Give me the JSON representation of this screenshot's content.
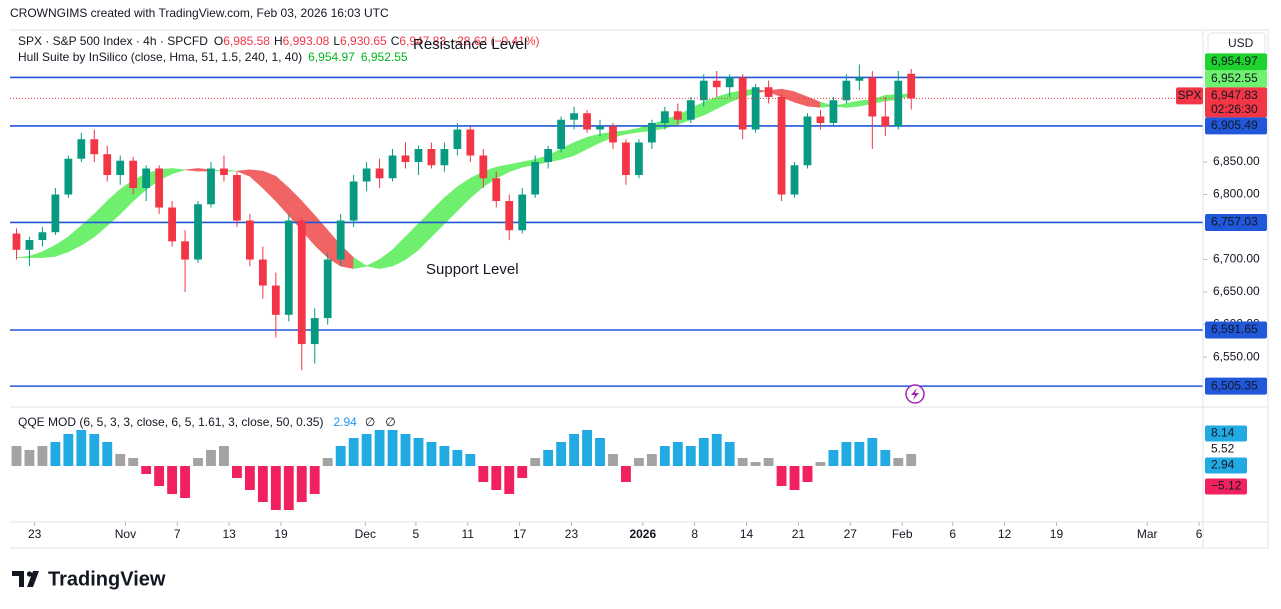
{
  "header": {
    "credit": "CROWNGIMS created with TradingView.com, Feb 03, 2026 16:03 UTC",
    "symbol": "SPX · S&P 500 Index · 4h · SPCFD",
    "quote": [
      "O",
      "6,985.58",
      "H",
      "6,993.08",
      "L",
      "6,930.65",
      "C",
      "6,947.83",
      "−28.62 (−0.41%)"
    ],
    "indicator": "Hull Suite by InSilico (close, Hma, 51, 1.5, 240, 1, 40)",
    "indicator_values": [
      "6,954.97",
      "6,952.55"
    ],
    "currency": "USD",
    "logo": "TradingView"
  },
  "chart_data": {
    "type": "candlestick",
    "up_color": "#089981",
    "down_color": "#f23645",
    "ylim": [
      6484,
      7053
    ],
    "xlim": [
      -0.5,
      91.5
    ],
    "yticks": [
      {
        "value": 6850,
        "label": "6,850.00"
      },
      {
        "value": 6800,
        "label": "6,800.00"
      },
      {
        "value": 6700,
        "label": "6,700.00"
      },
      {
        "value": 6650,
        "label": "6,650.00"
      },
      {
        "value": 6600,
        "label": "6,600.00"
      },
      {
        "value": 6550,
        "label": "6,550.00"
      }
    ],
    "xticks": [
      {
        "value": 1.4,
        "label": "23"
      },
      {
        "value": 8.4,
        "label": "Nov"
      },
      {
        "value": 12.4,
        "label": "7"
      },
      {
        "value": 16.4,
        "label": "13"
      },
      {
        "value": 20.4,
        "label": "19"
      },
      {
        "value": 26.9,
        "label": "Dec"
      },
      {
        "value": 30.8,
        "label": "5"
      },
      {
        "value": 34.8,
        "label": "11"
      },
      {
        "value": 38.8,
        "label": "17"
      },
      {
        "value": 42.8,
        "label": "23"
      },
      {
        "value": 48.3,
        "label": "2026"
      },
      {
        "value": 52.3,
        "label": "8"
      },
      {
        "value": 56.3,
        "label": "14"
      },
      {
        "value": 60.3,
        "label": "21"
      },
      {
        "value": 64.3,
        "label": "27"
      },
      {
        "value": 68.3,
        "label": "Feb"
      },
      {
        "value": 72.2,
        "label": "6"
      },
      {
        "value": 76.2,
        "label": "12"
      },
      {
        "value": 80.2,
        "label": "19"
      },
      {
        "value": 87.2,
        "label": "Mar"
      },
      {
        "value": 91.2,
        "label": "6"
      }
    ],
    "candles": [
      [
        6740,
        6748,
        6700,
        6715
      ],
      [
        6715,
        6735,
        6690,
        6730
      ],
      [
        6730,
        6750,
        6720,
        6742
      ],
      [
        6742,
        6810,
        6738,
        6800
      ],
      [
        6800,
        6860,
        6795,
        6855
      ],
      [
        6855,
        6895,
        6850,
        6885
      ],
      [
        6885,
        6900,
        6850,
        6862
      ],
      [
        6862,
        6875,
        6820,
        6830
      ],
      [
        6830,
        6860,
        6815,
        6852
      ],
      [
        6852,
        6858,
        6800,
        6810
      ],
      [
        6810,
        6845,
        6790,
        6840
      ],
      [
        6840,
        6845,
        6770,
        6780
      ],
      [
        6780,
        6790,
        6720,
        6728
      ],
      [
        6728,
        6745,
        6650,
        6700
      ],
      [
        6700,
        6790,
        6695,
        6785
      ],
      [
        6785,
        6850,
        6780,
        6840
      ],
      [
        6840,
        6860,
        6820,
        6830
      ],
      [
        6830,
        6835,
        6750,
        6760
      ],
      [
        6760,
        6770,
        6690,
        6700
      ],
      [
        6700,
        6720,
        6640,
        6660
      ],
      [
        6660,
        6680,
        6580,
        6615
      ],
      [
        6615,
        6770,
        6605,
        6760
      ],
      [
        6760,
        6765,
        6530,
        6570
      ],
      [
        6570,
        6625,
        6540,
        6610
      ],
      [
        6610,
        6710,
        6600,
        6700
      ],
      [
        6700,
        6770,
        6690,
        6760
      ],
      [
        6760,
        6830,
        6750,
        6820
      ],
      [
        6820,
        6850,
        6805,
        6840
      ],
      [
        6840,
        6855,
        6810,
        6825
      ],
      [
        6825,
        6870,
        6820,
        6860
      ],
      [
        6860,
        6880,
        6840,
        6850
      ],
      [
        6850,
        6875,
        6830,
        6870
      ],
      [
        6870,
        6880,
        6840,
        6845
      ],
      [
        6845,
        6880,
        6835,
        6870
      ],
      [
        6870,
        6910,
        6860,
        6900
      ],
      [
        6900,
        6905,
        6850,
        6860
      ],
      [
        6860,
        6870,
        6810,
        6825
      ],
      [
        6825,
        6835,
        6780,
        6790
      ],
      [
        6790,
        6800,
        6730,
        6745
      ],
      [
        6745,
        6810,
        6740,
        6800
      ],
      [
        6800,
        6860,
        6795,
        6850
      ],
      [
        6850,
        6875,
        6840,
        6870
      ],
      [
        6870,
        6920,
        6865,
        6915
      ],
      [
        6915,
        6935,
        6900,
        6925
      ],
      [
        6925,
        6930,
        6895,
        6900
      ],
      [
        6900,
        6915,
        6890,
        6905
      ],
      [
        6905,
        6910,
        6870,
        6880
      ],
      [
        6880,
        6885,
        6815,
        6830
      ],
      [
        6830,
        6885,
        6825,
        6880
      ],
      [
        6880,
        6915,
        6870,
        6910
      ],
      [
        6910,
        6935,
        6900,
        6928
      ],
      [
        6928,
        6940,
        6905,
        6915
      ],
      [
        6915,
        6950,
        6910,
        6945
      ],
      [
        6945,
        6985,
        6935,
        6975
      ],
      [
        6975,
        6990,
        6950,
        6965
      ],
      [
        6965,
        6985,
        6950,
        6980
      ],
      [
        6980,
        6985,
        6885,
        6900
      ],
      [
        6900,
        6970,
        6895,
        6965
      ],
      [
        6965,
        6975,
        6940,
        6950
      ],
      [
        6950,
        6955,
        6790,
        6800
      ],
      [
        6800,
        6850,
        6795,
        6845
      ],
      [
        6845,
        6925,
        6840,
        6920
      ],
      [
        6920,
        6930,
        6900,
        6910
      ],
      [
        6910,
        6950,
        6905,
        6945
      ],
      [
        6945,
        6985,
        6940,
        6975
      ],
      [
        6975,
        7000,
        6960,
        6980
      ],
      [
        6980,
        6990,
        6870,
        6920
      ],
      [
        6920,
        6950,
        6890,
        6905
      ],
      [
        6905,
        6990,
        6900,
        6975
      ],
      [
        6985.58,
        6993.08,
        6930.65,
        6947.83
      ]
    ],
    "hull": [
      6703,
      6705,
      6712,
      6722,
      6735,
      6752,
      6770,
      6790,
      6808,
      6822,
      6832,
      6838,
      6840,
      6838,
      6836,
      6836,
      6838,
      6836,
      6828,
      6810,
      6790,
      6768,
      6745,
      6722,
      6703,
      6690,
      6686,
      6690,
      6700,
      6715,
      6735,
      6755,
      6775,
      6795,
      6812,
      6825,
      6835,
      6842,
      6846,
      6850,
      6854,
      6860,
      6870,
      6880,
      6888,
      6893,
      6896,
      6898,
      6902,
      6908,
      6915,
      6922,
      6932,
      6942,
      6950,
      6956,
      6960,
      6962,
      6958,
      6950,
      6942,
      6936,
      6934,
      6936,
      6940,
      6944,
      6946,
      6952.55,
      6953.8,
      6954.97
    ],
    "hull_up_color": "#6ef06e",
    "hull_down_color": "#f06464",
    "levels": [
      6980,
      6905.49,
      6757.03,
      6591.65,
      6505.35
    ],
    "level_color": "#2157d9",
    "price_tags": [
      {
        "value": 6954.97,
        "label": "6,954.97",
        "color": "#1fd32f",
        "text_color": "#131722"
      },
      {
        "value": 6952.55,
        "label": "6,952.55",
        "color": "#6ff26f",
        "text_color": "#131722"
      },
      {
        "value": 6947.83,
        "label": "6,947.83",
        "sub": "02:26:30",
        "symbol": "SPX",
        "color": "#f23645",
        "text_color": "#ffffff"
      },
      {
        "value": 6905.49,
        "label": "6,905.49",
        "color": "#2157d9",
        "text_color": "#ffffff"
      },
      {
        "value": 6757.03,
        "label": "6,757.03",
        "color": "#2157d9",
        "text_color": "#ffffff"
      },
      {
        "value": 6591.65,
        "label": "6,591.65",
        "color": "#2157d9",
        "text_color": "#ffffff"
      },
      {
        "value": 6505.35,
        "label": "6,505.35",
        "color": "#2157d9",
        "text_color": "#ffffff"
      }
    ],
    "annotations": [
      "Resistance Level",
      "Support Level"
    ],
    "qqe": {
      "name": "QQE MOD (6, 5, 3, 3, close, 6, 5, 1.61, 3, close, 50, 0.35)",
      "header_value": "2.94",
      "header_marks": [
        "∅",
        "∅"
      ],
      "ylim": [
        -12,
        12
      ],
      "colors": {
        "up": "#22abe3",
        "down": "#f0215e",
        "neutral": "#a3a3a3"
      },
      "values": [
        5,
        4,
        5,
        6,
        8,
        9,
        8,
        6,
        3,
        2,
        -2,
        -5,
        -7,
        -8,
        2,
        4,
        5,
        -3,
        -6,
        -9,
        -11,
        -11,
        -9,
        -7,
        2,
        5,
        7,
        8,
        9,
        9,
        8,
        7,
        6,
        5,
        4,
        3,
        -4,
        -6,
        -7,
        -3,
        2,
        4,
        6,
        8,
        9,
        7,
        3,
        -4,
        2,
        3,
        5,
        6,
        5,
        7,
        8,
        6,
        2,
        1,
        2,
        -5,
        -6,
        -4,
        1,
        4,
        6,
        6,
        7,
        4,
        2,
        3
      ],
      "states": [
        "n",
        "n",
        "n",
        "u",
        "u",
        "u",
        "u",
        "u",
        "n",
        "n",
        "d",
        "d",
        "d",
        "d",
        "n",
        "n",
        "n",
        "d",
        "d",
        "d",
        "d",
        "d",
        "d",
        "d",
        "n",
        "u",
        "u",
        "u",
        "u",
        "u",
        "u",
        "u",
        "u",
        "u",
        "u",
        "u",
        "d",
        "d",
        "d",
        "d",
        "n",
        "u",
        "u",
        "u",
        "u",
        "u",
        "n",
        "d",
        "n",
        "n",
        "u",
        "u",
        "u",
        "u",
        "u",
        "u",
        "n",
        "n",
        "n",
        "d",
        "d",
        "d",
        "n",
        "u",
        "u",
        "u",
        "u",
        "u",
        "n",
        "n"
      ],
      "tags": [
        {
          "value": 8.14,
          "label": "8.14",
          "color": "#22abe3",
          "text_color": "#131722"
        },
        {
          "value": 5.52,
          "label": "5.52",
          "color": "#ffffff",
          "text_color": "#131722"
        },
        {
          "value": 2.94,
          "label": "2.94",
          "color": "#22abe3",
          "text_color": "#ffffff"
        },
        {
          "value": -5.12,
          "label": "−5.12",
          "color": "#f0215e",
          "text_color": "#ffffff"
        }
      ]
    }
  }
}
